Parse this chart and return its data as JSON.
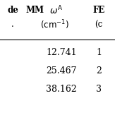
{
  "col1_header": "de",
  "col2_header_mm": "MM",
  "col2_header_omega": "$\\omega^{\\mathrm{A}}$",
  "col3_header": "FE",
  "col2_subheader": "$(\\mathrm{cm}^{-1})$",
  "col3_subheader": "(c",
  "col1_sub": ".",
  "rows": [
    [
      "12.741",
      "1"
    ],
    [
      "25.467",
      "2"
    ],
    [
      "38.162",
      "3"
    ]
  ],
  "bg_color": "#ffffff",
  "text_color": "#000000",
  "font_size": 8.5
}
